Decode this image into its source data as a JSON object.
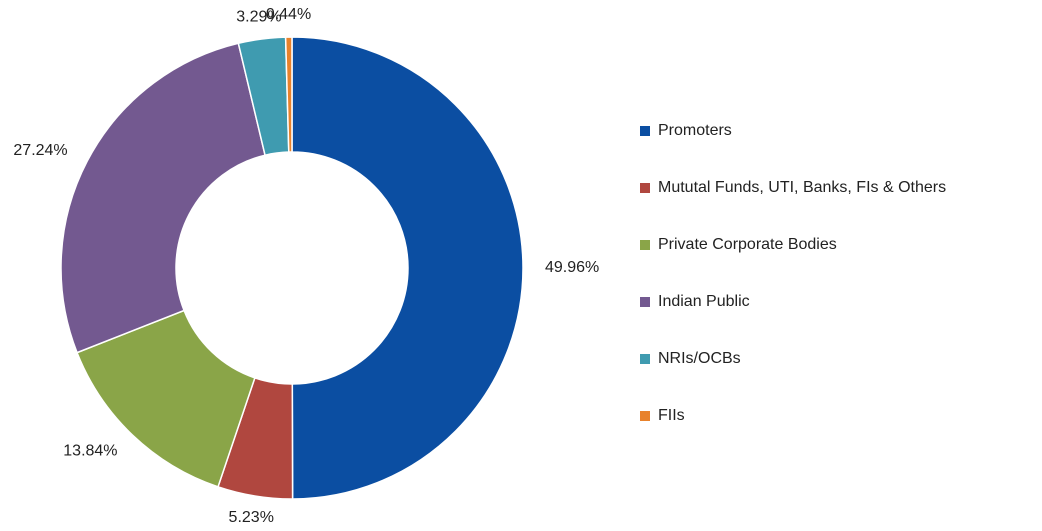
{
  "chart_data": {
    "type": "donut",
    "categories": [
      "Promoters",
      "Mututal Funds, UTI, Banks, FIs & Others",
      "Private Corporate Bodies",
      "Indian Public",
      "NRIs/OCBs",
      "FIIs"
    ],
    "values": [
      49.96,
      5.23,
      13.84,
      27.24,
      3.29,
      0.44
    ],
    "value_labels": [
      "49.96%",
      "5.23%",
      "13.84%",
      "27.24%",
      "3.29%",
      "0.44%"
    ],
    "colors": [
      "#0b4ea2",
      "#b0473f",
      "#8aa548",
      "#735990",
      "#3f9bb0",
      "#e8822c"
    ],
    "legend": "right"
  }
}
